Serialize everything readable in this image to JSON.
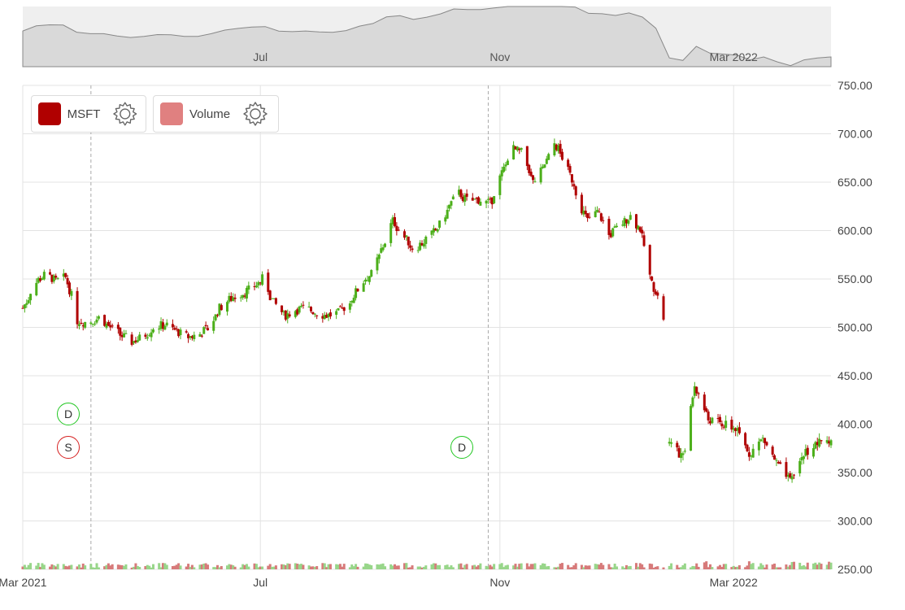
{
  "chart_data": {
    "type": "candlestick",
    "symbol": "MSFT",
    "series": [
      {
        "name": "MSFT"
      },
      {
        "name": "Volume"
      }
    ],
    "ylim": [
      250,
      750
    ],
    "y_ticks": [
      "750.00",
      "700.00",
      "650.00",
      "600.00",
      "550.00",
      "500.00",
      "450.00",
      "400.00",
      "350.00",
      "300.00",
      "250.00"
    ],
    "x_ticks": [
      "Mar 2021",
      "Jul",
      "Nov",
      "Mar 2022"
    ],
    "navigator_ticks": [
      "Jul",
      "Nov",
      "Mar 2022"
    ],
    "x_start": "2021-03-01",
    "x_end": "2022-04-20",
    "grid": true,
    "legend_position": "top-left",
    "price_path": [
      [
        "2021-03-01",
        520
      ],
      [
        "2021-03-08",
        545
      ],
      [
        "2021-03-15",
        555
      ],
      [
        "2021-03-22",
        548
      ],
      [
        "2021-03-29",
        552
      ],
      [
        "2021-04-05",
        507
      ],
      [
        "2021-04-12",
        505
      ],
      [
        "2021-04-19",
        510
      ],
      [
        "2021-04-26",
        500
      ],
      [
        "2021-05-03",
        492
      ],
      [
        "2021-05-10",
        485
      ],
      [
        "2021-05-17",
        490
      ],
      [
        "2021-05-24",
        500
      ],
      [
        "2021-06-01",
        503
      ],
      [
        "2021-06-08",
        496
      ],
      [
        "2021-06-15",
        490
      ],
      [
        "2021-06-22",
        492
      ],
      [
        "2021-06-29",
        500
      ],
      [
        "2021-07-06",
        520
      ],
      [
        "2021-07-13",
        530
      ],
      [
        "2021-07-20",
        535
      ],
      [
        "2021-07-27",
        540
      ],
      [
        "2021-08-03",
        550
      ],
      [
        "2021-08-10",
        525
      ],
      [
        "2021-08-17",
        512
      ],
      [
        "2021-08-24",
        518
      ],
      [
        "2021-08-31",
        520
      ],
      [
        "2021-09-07",
        515
      ],
      [
        "2021-09-14",
        512
      ],
      [
        "2021-09-21",
        515
      ],
      [
        "2021-09-28",
        525
      ],
      [
        "2021-10-05",
        545
      ],
      [
        "2021-10-12",
        555
      ],
      [
        "2021-10-19",
        580
      ],
      [
        "2021-10-26",
        610
      ],
      [
        "2021-11-02",
        595
      ],
      [
        "2021-11-09",
        580
      ],
      [
        "2021-11-16",
        590
      ],
      [
        "2021-11-23",
        600
      ],
      [
        "2021-11-30",
        620
      ],
      [
        "2021-12-07",
        640
      ],
      [
        "2021-12-14",
        630
      ],
      [
        "2021-12-21",
        632
      ],
      [
        "2021-12-28",
        628
      ],
      [
        "2022-01-04",
        655
      ],
      [
        "2022-01-11",
        685
      ],
      [
        "2022-01-18",
        680
      ],
      [
        "2022-01-25",
        650
      ],
      [
        "2022-02-01",
        665
      ],
      [
        "2022-02-08",
        690
      ],
      [
        "2022-02-15",
        670
      ],
      [
        "2022-02-22",
        640
      ],
      [
        "2022-03-01",
        610
      ],
      [
        "2022-03-08",
        620
      ],
      [
        "2022-03-15",
        595
      ],
      [
        "2022-03-22",
        605
      ],
      [
        "2022-03-29",
        615
      ],
      [
        "2022-04-05",
        600
      ],
      [
        "2022-04-12",
        545
      ],
      [
        "2022-04-19",
        520
      ],
      [
        "2022-04-20",
        510
      ]
    ],
    "post_gap_path": [
      [
        "2022-01-27",
        380
      ],
      [
        "2022-02-03",
        365
      ],
      [
        "2022-02-09",
        440
      ],
      [
        "2022-02-16",
        405
      ],
      [
        "2022-02-23",
        400
      ],
      [
        "2022-03-02",
        395
      ],
      [
        "2022-03-09",
        370
      ],
      [
        "2022-03-16",
        385
      ],
      [
        "2022-03-23",
        360
      ],
      [
        "2022-03-30",
        340
      ],
      [
        "2022-04-06",
        370
      ],
      [
        "2022-04-13",
        380
      ],
      [
        "2022-04-20",
        385
      ]
    ],
    "event_markers": [
      {
        "label": "D",
        "color": "#22c722",
        "date": "2021-04-05",
        "price": 410
      },
      {
        "label": "S",
        "color": "#d62020",
        "date": "2021-04-05",
        "price": 375
      },
      {
        "label": "D",
        "color": "#22c722",
        "date": "2021-10-26",
        "price": 375
      }
    ],
    "colors": {
      "up": "#4caf1a",
      "down": "#b00000",
      "volume_up": "#98d68a",
      "volume_down": "#d77a7a",
      "navigator_fill": "#d9d9d9",
      "navigator_line": "#888888"
    }
  },
  "legend": {
    "items": [
      {
        "label": "MSFT",
        "color": "#b00000",
        "icon": "gear-icon"
      },
      {
        "label": "Volume",
        "color": "#e08080",
        "icon": "gear-icon"
      }
    ]
  },
  "markers": {
    "d1": "D",
    "s1": "S",
    "d2": "D"
  }
}
